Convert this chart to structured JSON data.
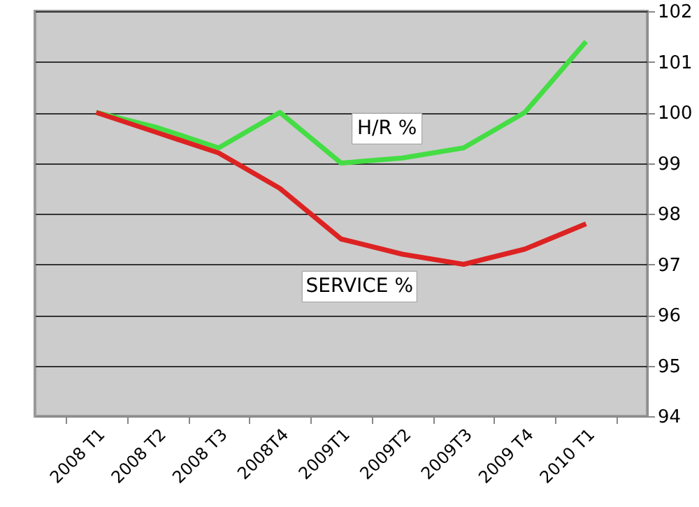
{
  "chart_data": {
    "type": "line",
    "categories": [
      "2008 T1",
      "2008 T2",
      "2008 T3",
      "2008T4",
      "2009T1",
      "2009T2",
      "2009T3",
      "2009 T4",
      "2010 T1"
    ],
    "series": [
      {
        "name": "H/R %",
        "color": "#44dd44",
        "values": [
          100,
          99.7,
          99.3,
          100,
          99.0,
          99.1,
          99.3,
          100,
          101.4
        ]
      },
      {
        "name": "SERVICE %",
        "color": "#dd2222",
        "values": [
          100,
          99.6,
          99.2,
          98.5,
          97.5,
          97.2,
          97.0,
          97.3,
          97.8
        ]
      }
    ],
    "ylim": [
      94,
      102
    ],
    "yticks": [
      94,
      95,
      96,
      97,
      98,
      99,
      100,
      101,
      102
    ],
    "grid": "y"
  }
}
